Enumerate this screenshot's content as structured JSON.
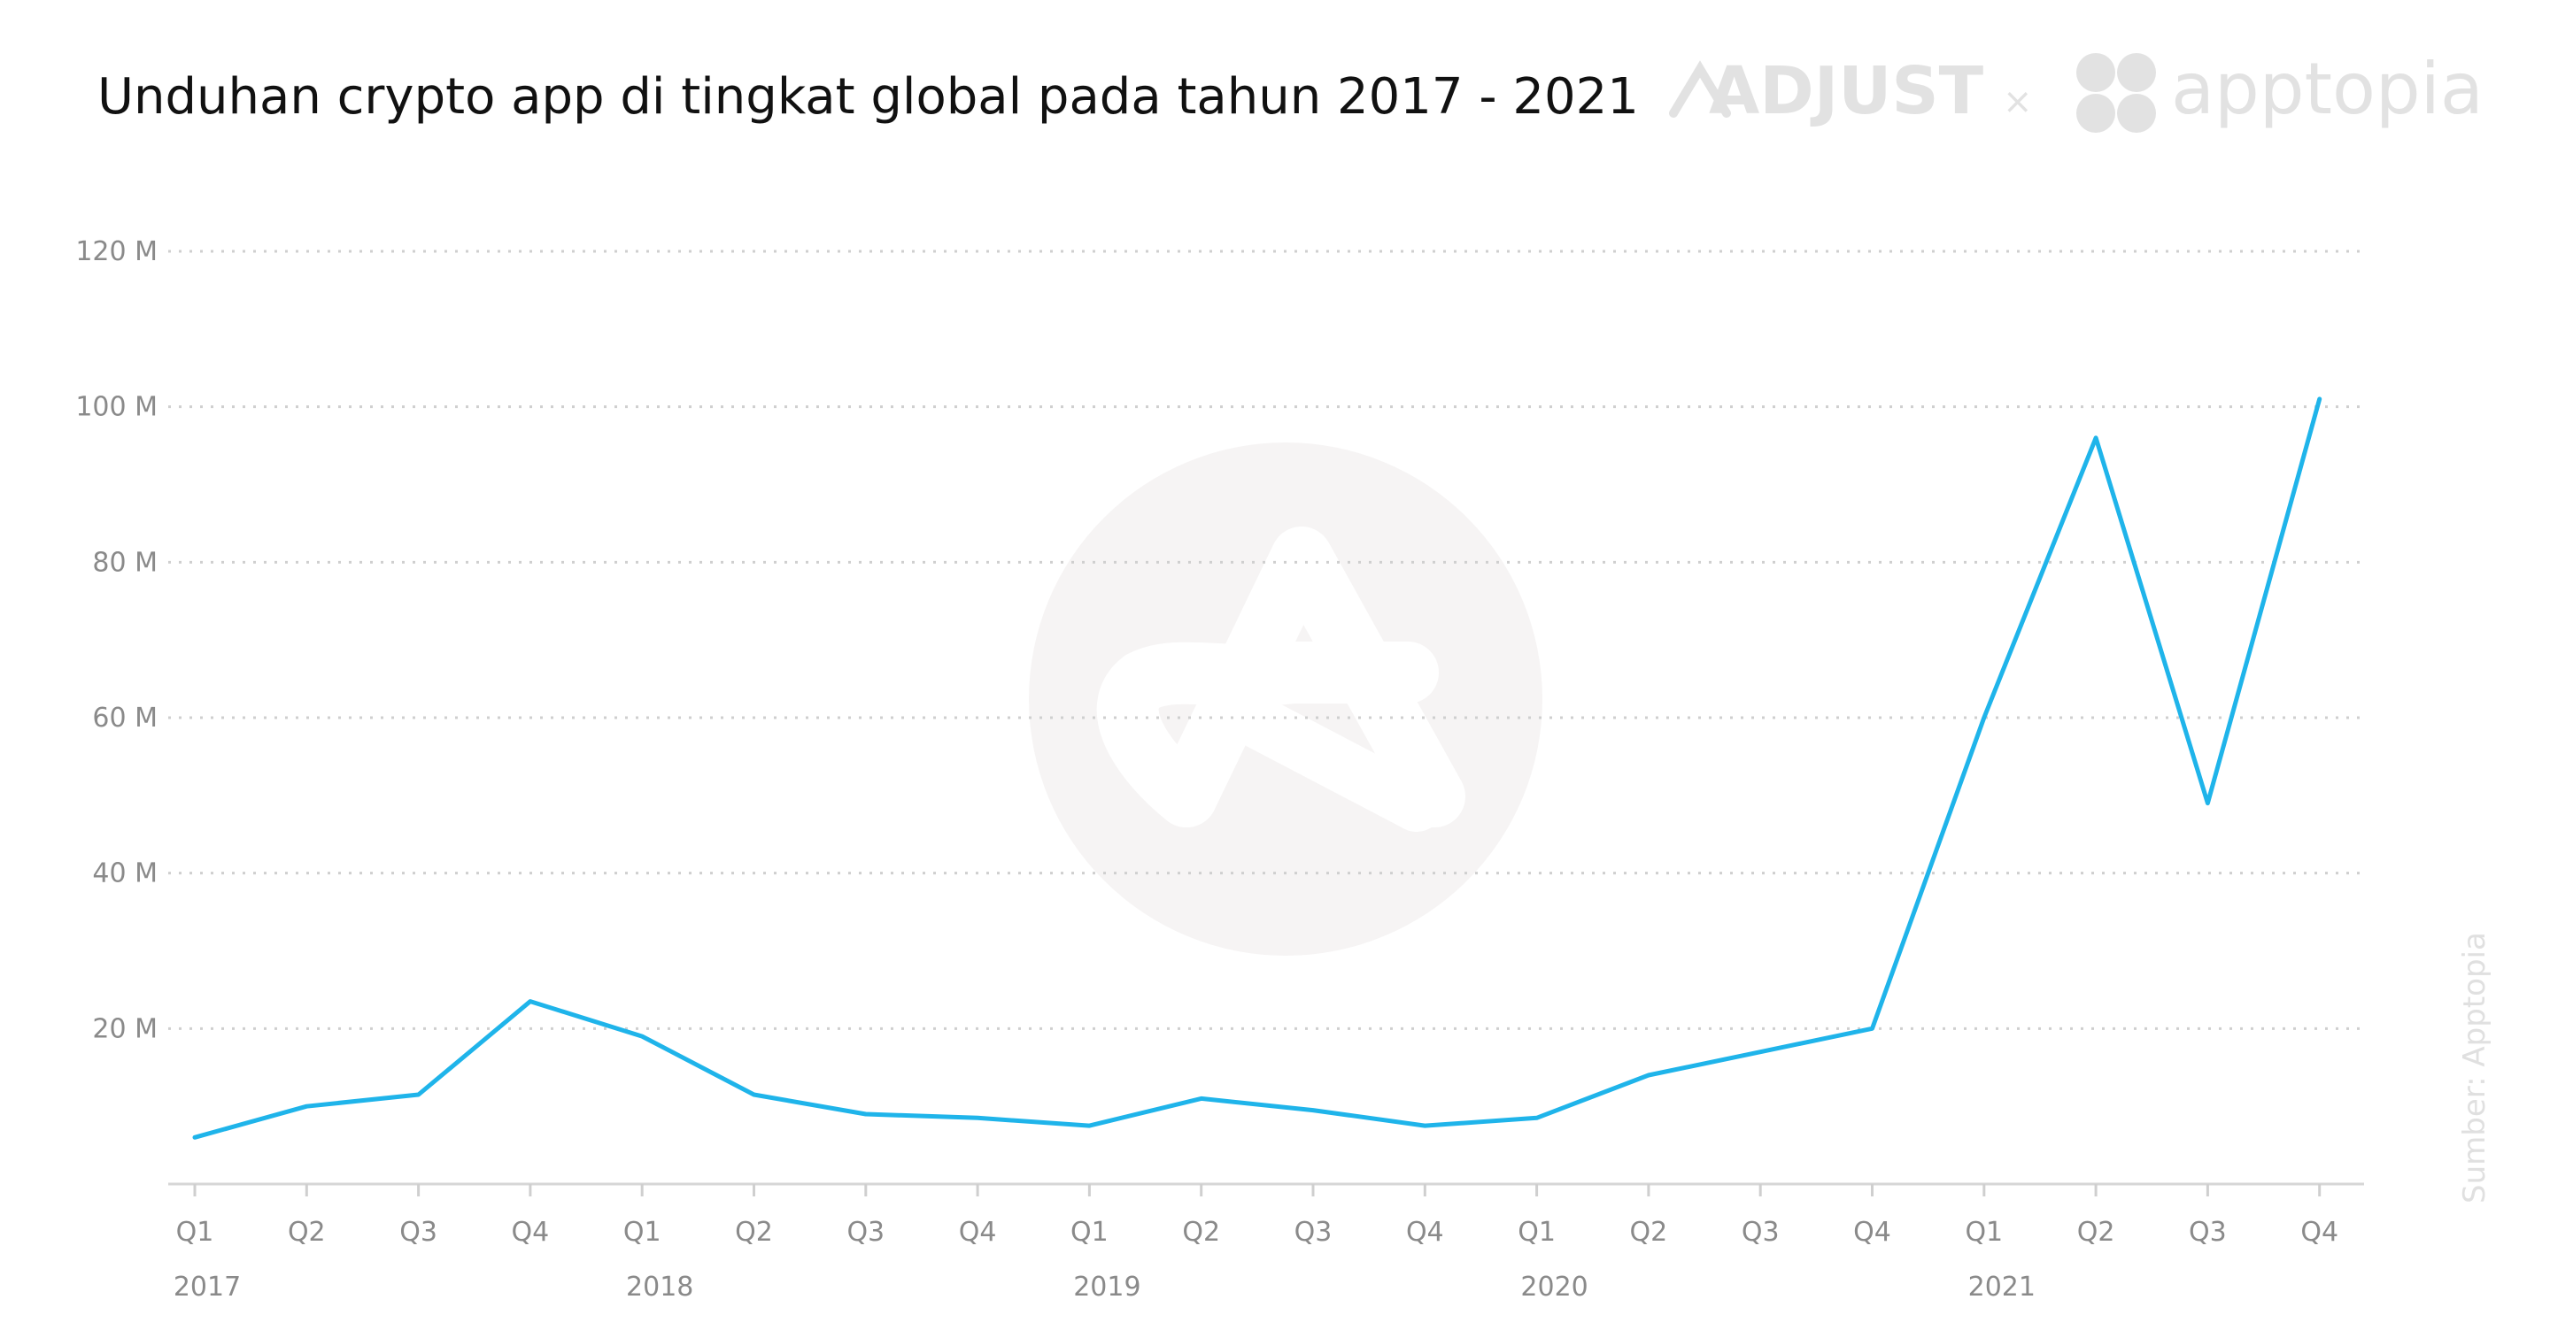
{
  "header": {
    "title": "Unduhan crypto app di tingkat global pada tahun 2017 - 2021",
    "brand_left": "ADJUST",
    "brand_sep": "×",
    "brand_right": "apptopia"
  },
  "source_note": "Sumber: Apptopia",
  "chart_data": {
    "type": "line",
    "title": "Unduhan crypto app di tingkat global pada tahun 2017 - 2021",
    "xlabel": "",
    "ylabel": "",
    "ylim": [
      0,
      120
    ],
    "y_unit": "M",
    "y_ticks": [
      20,
      40,
      60,
      80,
      100,
      120
    ],
    "y_tick_labels": [
      "20 M",
      "40 M",
      "60 M",
      "80 M",
      "100 M",
      "120 M"
    ],
    "grid": true,
    "categories": [
      "Q1",
      "Q2",
      "Q3",
      "Q4",
      "Q1",
      "Q2",
      "Q3",
      "Q4",
      "Q1",
      "Q2",
      "Q3",
      "Q4",
      "Q1",
      "Q2",
      "Q3",
      "Q4",
      "Q1",
      "Q2",
      "Q3",
      "Q4"
    ],
    "year_labels": [
      "2017",
      "2018",
      "2019",
      "2020",
      "2021"
    ],
    "year_label_indices": [
      0,
      4,
      8,
      12,
      16
    ],
    "series": [
      {
        "values": [
          6,
          10,
          11.5,
          23.5,
          19,
          11.5,
          9,
          8.5,
          7.5,
          11,
          9.5,
          7.5,
          8.5,
          14,
          17,
          20,
          60,
          96,
          49,
          101
        ]
      }
    ],
    "colors": {
      "line": "#1fb4ea",
      "grid": "#cfcfcf",
      "ticks": "#8a8a8a"
    }
  }
}
